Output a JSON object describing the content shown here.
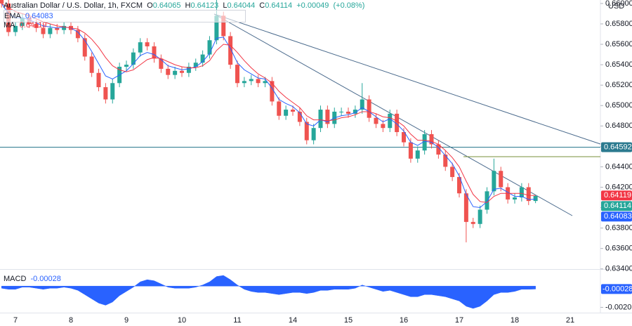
{
  "chart_data": {
    "type": "candlestick",
    "title": "Australian Dollar / U.S. Dollar, 1h, FXCM",
    "currency": "USD",
    "ohlc_labels": [
      "O",
      "H",
      "L",
      "C"
    ],
    "change": {
      "value": 0.00049,
      "label": "+0.00049"
    },
    "change_pct": {
      "value": 0.08,
      "label": "(+0.08%)"
    },
    "up_color": "#26a69a",
    "down_color": "#ef5350",
    "grid": false,
    "categories": [
      null,
      null,
      "7",
      null,
      null,
      null,
      null,
      null,
      null,
      null,
      "8",
      null,
      null,
      null,
      null,
      null,
      null,
      null,
      "9",
      null,
      null,
      null,
      null,
      null,
      null,
      null,
      "10",
      null,
      null,
      null,
      null,
      null,
      null,
      null,
      "11",
      null,
      null,
      null,
      null,
      null,
      null,
      null,
      "14",
      null,
      null,
      null,
      null,
      null,
      null,
      null,
      "15",
      null,
      null,
      null,
      null,
      null,
      null,
      null,
      "16",
      null,
      null,
      null,
      null,
      null,
      null,
      null,
      "17",
      null,
      null,
      null,
      null,
      null,
      null,
      null,
      "18",
      null,
      null,
      null,
      null,
      null,
      null,
      null,
      "21",
      null,
      null,
      null,
      null
    ],
    "open": [
      0.661,
      0.66,
      0.6572,
      0.6578,
      0.6586,
      0.658,
      0.6576,
      0.657,
      0.6576,
      0.6574,
      0.6578,
      0.6574,
      0.6566,
      0.6548,
      0.6532,
      0.6518,
      0.6506,
      0.6522,
      0.6538,
      0.654,
      0.6552,
      0.6562,
      0.6558,
      0.6546,
      0.6536,
      0.653,
      0.6534,
      0.6532,
      0.6538,
      0.6542,
      0.655,
      0.6564,
      0.6588,
      0.6568,
      0.654,
      0.6522,
      0.6524,
      0.6526,
      0.6522,
      0.6524,
      0.6504,
      0.649,
      0.6496,
      0.6494,
      0.6484,
      0.6466,
      0.6478,
      0.6496,
      0.6482,
      0.6494,
      0.6494,
      0.6492,
      0.6496,
      0.6506,
      0.6488,
      0.6482,
      0.6478,
      0.6492,
      0.6474,
      0.6464,
      0.6448,
      0.6456,
      0.6472,
      0.6462,
      0.6452,
      0.644,
      0.643,
      0.6414,
      0.6386,
      0.6384,
      0.6398,
      0.6416,
      0.6436,
      0.642,
      0.6408,
      0.641,
      0.642,
      0.64065,
      null,
      null,
      null,
      null,
      null,
      null,
      null,
      null,
      null
    ],
    "high": [
      0.6614,
      0.6604,
      0.6582,
      0.659,
      0.659,
      0.6584,
      0.658,
      0.658,
      0.658,
      0.6582,
      0.6582,
      0.6578,
      0.657,
      0.6552,
      0.6536,
      0.6522,
      0.6526,
      0.6542,
      0.6544,
      0.6556,
      0.6566,
      0.6566,
      0.6562,
      0.655,
      0.654,
      0.6538,
      0.6538,
      0.6542,
      0.6546,
      0.6554,
      0.6568,
      0.6617,
      0.6592,
      0.6572,
      0.6544,
      0.6528,
      0.653,
      0.653,
      0.6528,
      0.6528,
      0.6508,
      0.65,
      0.65,
      0.6498,
      0.6488,
      0.6482,
      0.65,
      0.65,
      0.6498,
      0.6498,
      0.6498,
      0.65,
      0.6522,
      0.651,
      0.6492,
      0.6486,
      0.6496,
      0.6496,
      0.6478,
      0.6468,
      0.646,
      0.6476,
      0.6476,
      0.6466,
      0.6456,
      0.6444,
      0.6434,
      0.6418,
      0.639,
      0.6402,
      0.642,
      0.6448,
      0.644,
      0.6424,
      0.6414,
      0.6424,
      0.6424,
      0.64123,
      null,
      null,
      null,
      null,
      null,
      null,
      null,
      null,
      null
    ],
    "low": [
      0.6596,
      0.6568,
      0.6568,
      0.6574,
      0.6576,
      0.6572,
      0.6566,
      0.6566,
      0.657,
      0.657,
      0.657,
      0.6562,
      0.6544,
      0.6528,
      0.6514,
      0.6502,
      0.6502,
      0.6518,
      0.6534,
      0.6536,
      0.6548,
      0.6554,
      0.6542,
      0.6532,
      0.6526,
      0.6526,
      0.6528,
      0.6528,
      0.6534,
      0.6538,
      0.6546,
      0.656,
      0.6564,
      0.6536,
      0.6518,
      0.6518,
      0.652,
      0.6518,
      0.6518,
      0.65,
      0.6486,
      0.6486,
      0.649,
      0.648,
      0.6462,
      0.6462,
      0.6474,
      0.6478,
      0.6478,
      0.649,
      0.6488,
      0.6488,
      0.6492,
      0.6484,
      0.6478,
      0.6474,
      0.6474,
      0.647,
      0.646,
      0.6444,
      0.6444,
      0.6452,
      0.6458,
      0.6448,
      0.6436,
      0.6426,
      0.641,
      0.6366,
      0.638,
      0.638,
      0.6394,
      0.6412,
      0.6416,
      0.6404,
      0.6404,
      0.6406,
      0.64025,
      0.64044,
      null,
      null,
      null,
      null,
      null,
      null,
      null,
      null,
      null
    ],
    "close": [
      0.66,
      0.6572,
      0.6578,
      0.6586,
      0.658,
      0.6576,
      0.657,
      0.6576,
      0.6574,
      0.6578,
      0.6574,
      0.6566,
      0.6548,
      0.6532,
      0.6518,
      0.6506,
      0.6522,
      0.6538,
      0.654,
      0.6552,
      0.6562,
      0.6558,
      0.6546,
      0.6536,
      0.653,
      0.6534,
      0.6532,
      0.6538,
      0.6542,
      0.655,
      0.6564,
      0.6588,
      0.6568,
      0.654,
      0.6522,
      0.6524,
      0.6526,
      0.6522,
      0.6524,
      0.6504,
      0.649,
      0.6496,
      0.6494,
      0.6484,
      0.6466,
      0.6478,
      0.6496,
      0.6482,
      0.6494,
      0.6494,
      0.6492,
      0.6496,
      0.6506,
      0.6488,
      0.6482,
      0.6478,
      0.6492,
      0.6474,
      0.6464,
      0.6448,
      0.6456,
      0.6472,
      0.6462,
      0.6452,
      0.644,
      0.643,
      0.6414,
      0.6386,
      0.6384,
      0.6398,
      0.6416,
      0.6436,
      0.642,
      0.6408,
      0.641,
      0.642,
      0.64065,
      0.64114,
      null,
      null,
      null,
      null,
      null,
      null,
      null,
      null,
      null
    ],
    "indicators": [
      {
        "name": "EMA",
        "color": "#2962ff",
        "values": [
          0.66,
          0.659,
          0.6586,
          0.6586,
          0.6584,
          0.6581,
          0.6578,
          0.6577,
          0.6576,
          0.6577,
          0.6576,
          0.6572,
          0.6564,
          0.6553,
          0.6541,
          0.6529,
          0.6526,
          0.653,
          0.6534,
          0.6541,
          0.6549,
          0.6552,
          0.655,
          0.6545,
          0.6539,
          0.6537,
          0.6535,
          0.6536,
          0.6538,
          0.6543,
          0.6551,
          0.6566,
          0.6567,
          0.6556,
          0.6542,
          0.6535,
          0.6531,
          0.6527,
          0.6526,
          0.6517,
          0.6506,
          0.6502,
          0.6499,
          0.6493,
          0.6482,
          0.648,
          0.6486,
          0.6484,
          0.6488,
          0.649,
          0.6491,
          0.6493,
          0.6498,
          0.6494,
          0.6489,
          0.6484,
          0.6487,
          0.6482,
          0.6475,
          0.6464,
          0.6461,
          0.6465,
          0.6464,
          0.6459,
          0.6451,
          0.6443,
          0.6431,
          0.6413,
          0.6401,
          0.64,
          0.6406,
          0.6418,
          0.6419,
          0.6415,
          0.6411,
          0.6411,
          0.6408,
          0.64083,
          null,
          null,
          null,
          null,
          null,
          null,
          null,
          null,
          null
        ]
      },
      {
        "name": "MA",
        "color": "#f23645",
        "values": [
          0.66,
          0.6596,
          0.6592,
          0.659,
          0.6588,
          0.6585,
          0.6582,
          0.658,
          0.6578,
          0.6577,
          0.6576,
          0.6575,
          0.6571,
          0.6565,
          0.6557,
          0.6547,
          0.6539,
          0.6535,
          0.6533,
          0.6535,
          0.654,
          0.6545,
          0.6547,
          0.6546,
          0.6543,
          0.654,
          0.6538,
          0.6537,
          0.6537,
          0.6539,
          0.6544,
          0.6554,
          0.656,
          0.6559,
          0.6552,
          0.6544,
          0.6537,
          0.6531,
          0.6527,
          0.6522,
          0.6514,
          0.6508,
          0.6503,
          0.6498,
          0.649,
          0.6486,
          0.6486,
          0.6485,
          0.6486,
          0.6488,
          0.6489,
          0.6491,
          0.6494,
          0.6494,
          0.6492,
          0.6489,
          0.6488,
          0.6485,
          0.648,
          0.6472,
          0.6466,
          0.6466,
          0.6465,
          0.6462,
          0.6456,
          0.6449,
          0.644,
          0.6426,
          0.6413,
          0.6406,
          0.6405,
          0.6411,
          0.6414,
          0.6414,
          0.6414,
          0.6414,
          0.6412,
          0.64119,
          null,
          null,
          null,
          null,
          null,
          null,
          null,
          null,
          null
        ]
      }
    ],
    "hline": 0.64592,
    "hline_color": "#2b7a8f",
    "ylim": [
      0.63398,
      0.66034
    ],
    "yticks": [
      {
        "value": 0.66,
        "label": "0.66000"
      },
      {
        "value": 0.658,
        "label": "0.65800"
      },
      {
        "value": 0.656,
        "label": "0.65600"
      },
      {
        "value": 0.654,
        "label": "0.65400"
      },
      {
        "value": 0.652,
        "label": "0.65200"
      },
      {
        "value": 0.65,
        "label": "0.65000"
      },
      {
        "value": 0.648,
        "label": "0.64800"
      },
      {
        "value": 0.646,
        "label": "0.64600"
      },
      {
        "value": 0.644,
        "label": "0.64400"
      },
      {
        "value": 0.642,
        "label": "0.64200"
      },
      {
        "value": 0.64,
        "label": "0.64000"
      },
      {
        "value": 0.638,
        "label": "0.63800"
      },
      {
        "value": 0.636,
        "label": "0.63600"
      },
      {
        "value": 0.634,
        "label": "0.63400"
      }
    ],
    "macd": {
      "name": "MACD",
      "color": "#2962ff",
      "values": [
        -0.0002,
        -0.0003,
        -0.0003,
        -0.0001,
        -0.0001,
        -0.0002,
        -0.0003,
        -0.0002,
        -0.0002,
        -0.0001,
        -0.0002,
        -0.0004,
        -0.0008,
        -0.0012,
        -0.0016,
        -0.0018,
        -0.0015,
        -0.0009,
        -0.0005,
        -0.0001,
        0.0004,
        0.0006,
        0.0005,
        0.0002,
        -0.0001,
        -0.0002,
        -0.0002,
        -0.0002,
        -0.0001,
        0.0001,
        0.0004,
        0.0009,
        0.001,
        0.0006,
        0.0001,
        -0.0003,
        -0.0005,
        -0.0006,
        -0.0006,
        -0.0007,
        -0.0008,
        -0.0007,
        -0.0006,
        -0.0006,
        -0.0007,
        -0.0006,
        -0.0004,
        -0.0004,
        -0.0003,
        -0.0003,
        -0.0003,
        -0.0002,
        0.0001,
        -0.0001,
        -0.0003,
        -0.0005,
        -0.0004,
        -0.0006,
        -0.0008,
        -0.001,
        -0.001,
        -0.0008,
        -0.0008,
        -0.0009,
        -0.001,
        -0.0012,
        -0.0014,
        -0.0019,
        -0.0021,
        -0.0019,
        -0.0014,
        -0.0008,
        -0.0006,
        -0.0006,
        -0.0005,
        -0.0003,
        -0.0003,
        -0.00028,
        null,
        null,
        null,
        null,
        null,
        null,
        null,
        null,
        null
      ],
      "ylim": [
        -0.0025,
        0.0016
      ],
      "yticks": [
        {
          "value": -0.002,
          "label": "-0.0020"
        }
      ]
    }
  }
}
